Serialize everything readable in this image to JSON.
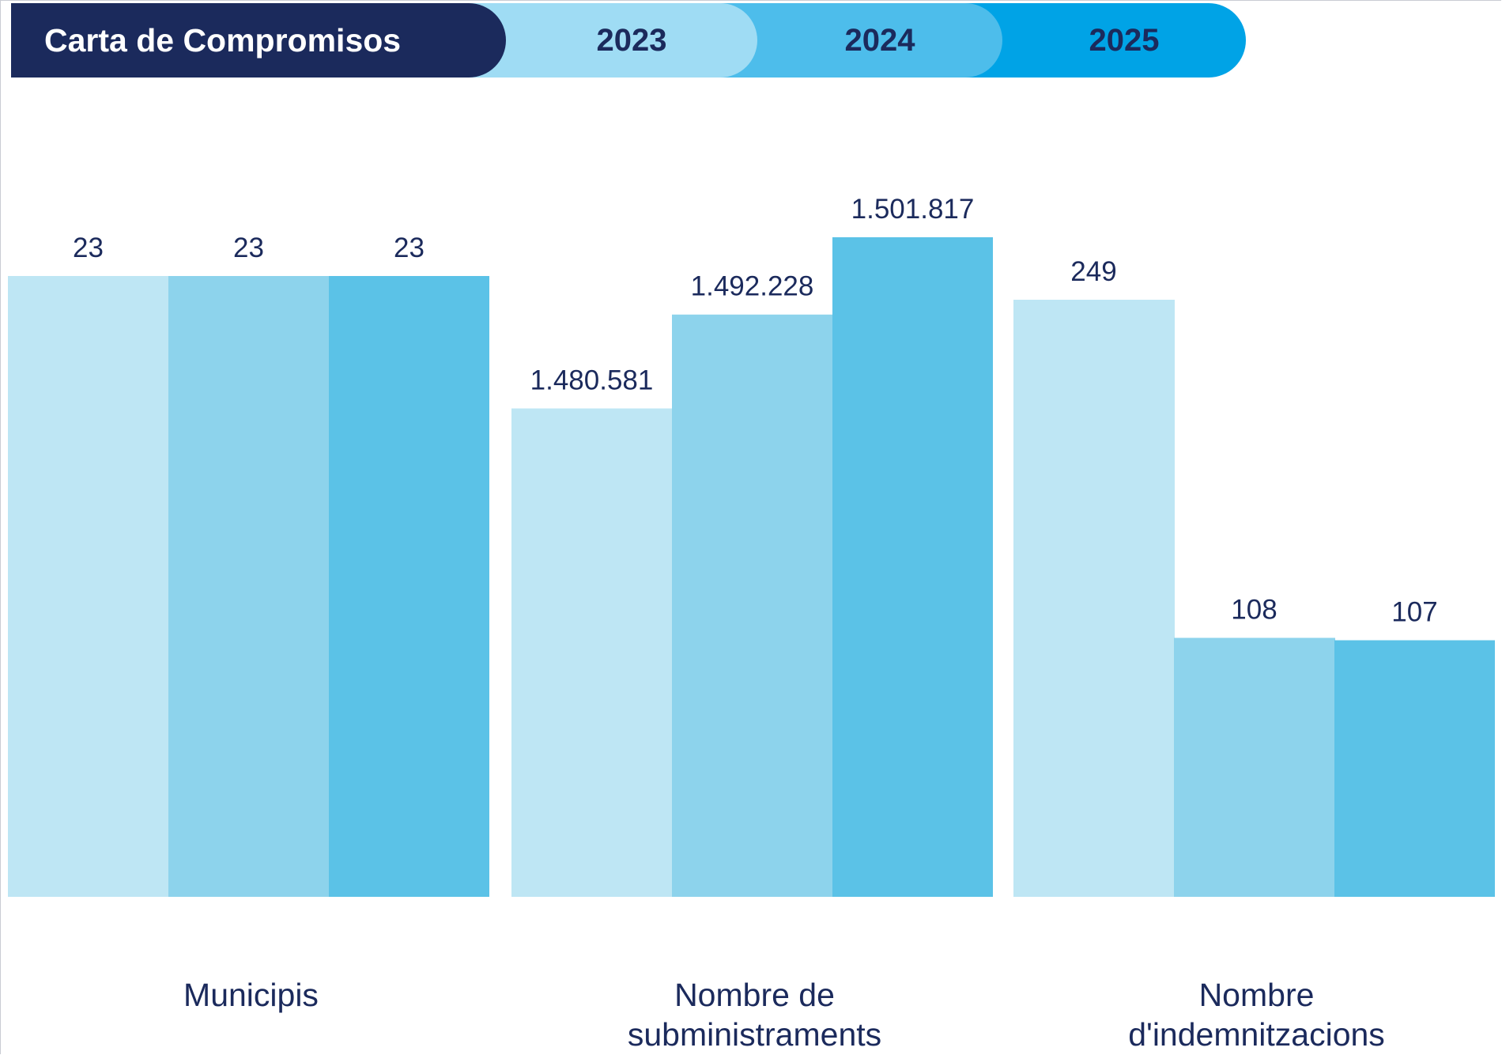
{
  "header": {
    "title": "Carta de Compromisos",
    "title_color": "#1b2a5c"
  },
  "chart_data": {
    "type": "bar",
    "title": "",
    "xlabel": "",
    "ylabel": "",
    "categories": [
      "Municipis",
      "Nombre de subministraments",
      "Nombre d'indemnitzacions"
    ],
    "category_label_lines": [
      [
        "Municipis"
      ],
      [
        "Nombre de",
        "subministraments"
      ],
      [
        "Nombre",
        "d'indemnitzacions"
      ]
    ],
    "series": [
      {
        "name": "2023",
        "color": "#bee6f4",
        "header_color": "#9fdcf4",
        "values": [
          23,
          1480581,
          249
        ],
        "labels": [
          "23",
          "1.480.581",
          "249"
        ]
      },
      {
        "name": "2024",
        "color": "#8dd3ec",
        "header_color": "#4dbdeb",
        "values": [
          23,
          1492228,
          108
        ],
        "labels": [
          "23",
          "1.492.228",
          "108"
        ]
      },
      {
        "name": "2025",
        "color": "#5bc2e7",
        "header_color": "#00a3e6",
        "values": [
          23,
          1501817,
          107
        ],
        "labels": [
          "23",
          "1.501.817",
          "107"
        ]
      }
    ],
    "independent_scale_per_category": true,
    "legend_position": "top",
    "grid": false,
    "label_color": "#1b2a5c"
  }
}
